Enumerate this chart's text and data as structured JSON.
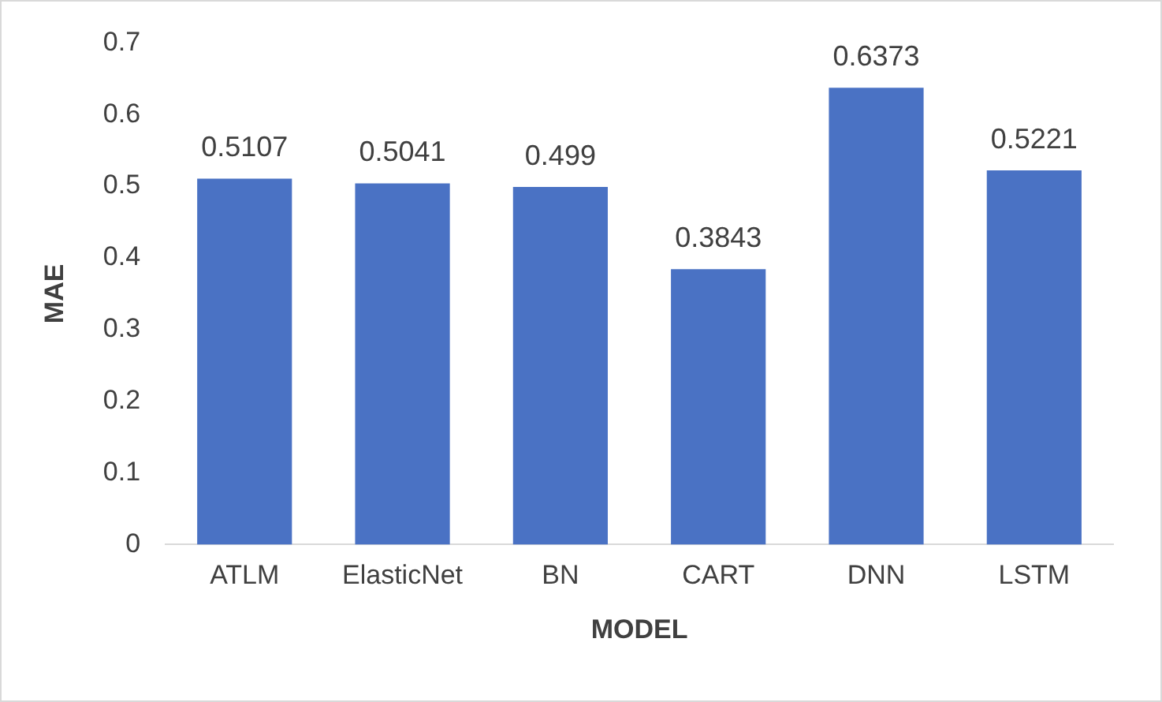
{
  "chart_data": {
    "type": "bar",
    "xlabel": "MODEL",
    "ylabel": "MAE",
    "categories": [
      "ATLM",
      "ElasticNet",
      "BN",
      "CART",
      "DNN",
      "LSTM"
    ],
    "values": [
      0.5107,
      0.5041,
      0.499,
      0.3843,
      0.6373,
      0.5221
    ],
    "color": "#4a72c4",
    "ylim": [
      0,
      0.7
    ],
    "yticks": [
      0,
      0.1,
      0.2,
      0.3,
      0.4,
      0.5,
      0.6,
      0.7
    ],
    "grid": false,
    "legend": false,
    "data_labels": true
  }
}
